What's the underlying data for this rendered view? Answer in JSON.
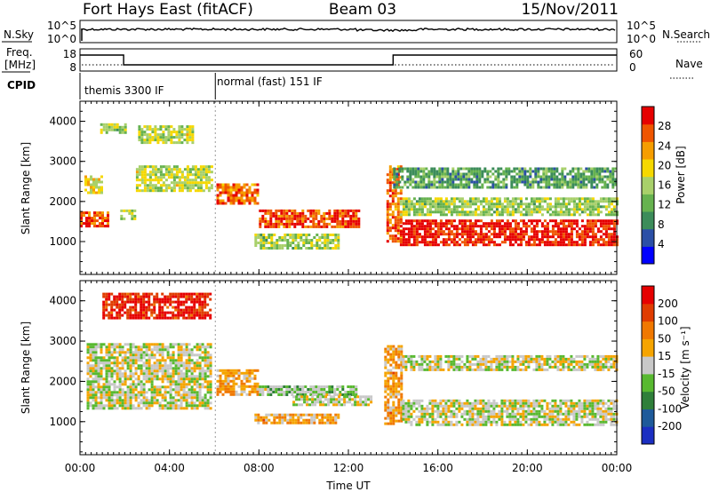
{
  "header": {
    "station": "Fort Hays East (fitACF)",
    "beam": "Beam 03",
    "date": "15/Nov/2011"
  },
  "aux": {
    "nsky_label": "N.Sky",
    "nsearch_label": "N.Search",
    "noise_ticks_left": [
      "10^5",
      "10^0"
    ],
    "noise_ticks_right": [
      "10^5",
      "10^0"
    ],
    "freq_label_1": "Freq.",
    "freq_label_2": "[MHz]",
    "freq_ticks": [
      "18",
      "8"
    ],
    "nave_label": "Nave",
    "nave_ticks": [
      "60",
      "0"
    ],
    "cpid_label": "CPID",
    "cpid_modes": [
      {
        "name": "themis 3300 IF",
        "start_hour": 0.0,
        "end_hour": 6.05
      },
      {
        "name": "normal (fast) 151 IF",
        "start_hour": 6.05,
        "end_hour": 24.0
      }
    ],
    "freq_steps": [
      {
        "start_hour": 0.0,
        "end_hour": 1.95,
        "level": "high"
      },
      {
        "start_hour": 1.95,
        "end_hour": 14.0,
        "level": "low"
      },
      {
        "start_hour": 14.0,
        "end_hour": 24.0,
        "level": "high"
      }
    ]
  },
  "x_axis": {
    "title": "Time UT",
    "ticks": [
      "00:00",
      "04:00",
      "08:00",
      "12:00",
      "16:00",
      "20:00",
      "00:00"
    ]
  },
  "colors": {
    "power": [
      "#0000ff",
      "#2b4fa6",
      "#3c8c5a",
      "#66b24f",
      "#a8d06a",
      "#f5d800",
      "#f59d00",
      "#ef5500",
      "#e60000"
    ],
    "velocity": [
      "#1b2fc2",
      "#1e5a9a",
      "#2f7f3a",
      "#58b930",
      "#c8c8c8",
      "#f5a400",
      "#f07800",
      "#e03c00",
      "#e60000"
    ]
  },
  "chart_data": [
    {
      "type": "heatmap",
      "name": "power",
      "ylabel": "Slant Range [km]",
      "yticks": [
        1000,
        2000,
        3000,
        4000
      ],
      "ylim": [
        180,
        4500
      ],
      "xlim": [
        0,
        24
      ],
      "colorbar": {
        "label": "Power [dB]",
        "ticks": [
          "4",
          "8",
          "12",
          "16",
          "20",
          "24",
          "28"
        ],
        "range": [
          0,
          30
        ]
      },
      "echo_bands": [
        {
          "t0": 0.0,
          "t1": 1.2,
          "r0": 1400,
          "r1": 1750,
          "v": 26
        },
        {
          "t0": 0.2,
          "t1": 1.0,
          "r0": 2250,
          "r1": 2650,
          "v": 18
        },
        {
          "t0": 0.9,
          "t1": 2.0,
          "r0": 3700,
          "r1": 3950,
          "v": 14
        },
        {
          "t0": 1.8,
          "t1": 2.5,
          "r0": 1550,
          "r1": 1800,
          "v": 14
        },
        {
          "t0": 2.5,
          "t1": 5.9,
          "r0": 2300,
          "r1": 2900,
          "v": 16
        },
        {
          "t0": 2.6,
          "t1": 5.0,
          "r0": 3500,
          "r1": 3900,
          "v": 16
        },
        {
          "t0": 6.1,
          "t1": 8.0,
          "r0": 1950,
          "r1": 2450,
          "v": 24
        },
        {
          "t0": 8.0,
          "t1": 12.5,
          "r0": 1400,
          "r1": 1800,
          "v": 26
        },
        {
          "t0": 7.8,
          "t1": 11.5,
          "r0": 850,
          "r1": 1200,
          "v": 14
        },
        {
          "t0": 13.7,
          "t1": 14.3,
          "r0": 1000,
          "r1": 2900,
          "v": 24
        },
        {
          "t0": 14.3,
          "t1": 24.0,
          "r0": 950,
          "r1": 1550,
          "v": 28
        },
        {
          "t0": 14.3,
          "t1": 24.0,
          "r0": 1700,
          "r1": 2100,
          "v": 14
        },
        {
          "t0": 14.0,
          "t1": 24.0,
          "r0": 2350,
          "r1": 2850,
          "v": 10
        }
      ]
    },
    {
      "type": "heatmap",
      "name": "velocity",
      "ylabel": "Slant Range [km]",
      "yticks": [
        1000,
        2000,
        3000,
        4000
      ],
      "ylim": [
        180,
        4500
      ],
      "xlim": [
        0,
        24
      ],
      "colorbar": {
        "label": "Velocity [m s⁻¹]",
        "ticks": [
          "200",
          "100",
          "50",
          "15",
          "-15",
          "-50",
          "-100",
          "-200"
        ],
        "range": [
          -250,
          250
        ]
      },
      "echo_bands": [
        {
          "t0": 0.3,
          "t1": 5.9,
          "r0": 1300,
          "r1": 2950,
          "v": 0
        },
        {
          "t0": 1.0,
          "t1": 5.8,
          "r0": 3600,
          "r1": 4200,
          "v": 200
        },
        {
          "t0": 6.1,
          "t1": 8.0,
          "r0": 1700,
          "r1": 2300,
          "v": 70
        },
        {
          "t0": 8.0,
          "t1": 12.3,
          "r0": 1650,
          "r1": 1900,
          "v": -40
        },
        {
          "t0": 7.8,
          "t1": 11.5,
          "r0": 950,
          "r1": 1200,
          "v": 70
        },
        {
          "t0": 9.5,
          "t1": 13.0,
          "r0": 1400,
          "r1": 1650,
          "v": 0
        },
        {
          "t0": 13.6,
          "t1": 14.4,
          "r0": 950,
          "r1": 2900,
          "v": 70
        },
        {
          "t0": 14.4,
          "t1": 24.0,
          "r0": 900,
          "r1": 1550,
          "v": 0
        },
        {
          "t0": 14.4,
          "t1": 24.0,
          "r0": 2300,
          "r1": 2650,
          "v": 0
        }
      ]
    }
  ]
}
